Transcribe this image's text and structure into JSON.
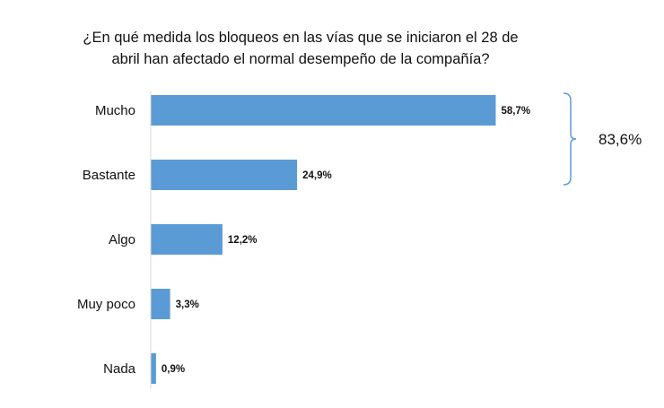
{
  "chart_data": {
    "type": "bar",
    "orientation": "horizontal",
    "title": "¿En qué medida los bloqueos en las vías que se iniciaron el 28 de abril han afectado el normal desempeño de la compañía?",
    "categories": [
      "Mucho",
      "Bastante",
      "Algo",
      "Muy poco",
      "Nada"
    ],
    "values": [
      58.7,
      24.9,
      12.2,
      3.3,
      0.9
    ],
    "value_labels": [
      "58,7%",
      "24,9%",
      "12,2%",
      "3,3%",
      "0,9%"
    ],
    "xlim": [
      0,
      100
    ],
    "grid": false,
    "legend": "none",
    "bar_color": "#5b9bd5",
    "bracket": {
      "categories": [
        "Mucho",
        "Bastante"
      ],
      "label": "83,6%",
      "color": "#5b9bd5"
    }
  }
}
